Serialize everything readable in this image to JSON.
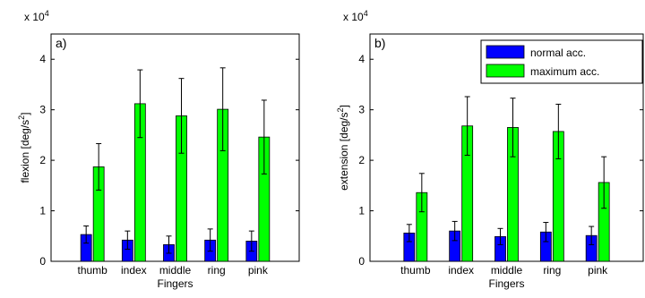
{
  "chart_data": [
    {
      "type": "bar",
      "panel_label": "a)",
      "multiplier_base": "x 10",
      "multiplier_exp": "4",
      "xlabel": "Fingers",
      "ylabel": "flexion [deg/s",
      "ylabel_exp": "2",
      "ylabel_end": "]",
      "ylim": [
        0,
        45000
      ],
      "yticks": [
        0,
        10000,
        20000,
        30000,
        40000
      ],
      "ytick_labels": [
        "0",
        "1",
        "2",
        "3",
        "4"
      ],
      "categories": [
        "thumb",
        "index",
        "middle",
        "ring",
        "pink"
      ],
      "series": [
        {
          "color": "#0000ff",
          "values": [
            5300,
            4200,
            3300,
            4200,
            4000
          ],
          "errors": [
            1700,
            1800,
            1700,
            2200,
            2000
          ]
        },
        {
          "color": "#00ff00",
          "values": [
            18700,
            31200,
            28800,
            30100,
            24600
          ],
          "errors": [
            4600,
            6700,
            7400,
            8200,
            7300
          ]
        }
      ],
      "legend": null
    },
    {
      "type": "bar",
      "panel_label": "b)",
      "multiplier_base": "x 10",
      "multiplier_exp": "4",
      "xlabel": "Fingers",
      "ylabel": "extension [deg/s",
      "ylabel_exp": "2",
      "ylabel_end": "]",
      "ylim": [
        0,
        45000
      ],
      "yticks": [
        0,
        10000,
        20000,
        30000,
        40000
      ],
      "ytick_labels": [
        "0",
        "1",
        "2",
        "3",
        "4"
      ],
      "categories": [
        "thumb",
        "index",
        "middle",
        "ring",
        "pink"
      ],
      "series": [
        {
          "name": "normal acc.",
          "color": "#0000ff",
          "values": [
            5600,
            6000,
            4900,
            5800,
            5100
          ],
          "errors": [
            1700,
            1900,
            1600,
            1900,
            1800
          ]
        },
        {
          "name": "maximum acc.",
          "color": "#00ff00",
          "values": [
            13600,
            26800,
            26500,
            25700,
            15600
          ],
          "errors": [
            3800,
            5800,
            5800,
            5400,
            5100
          ]
        }
      ],
      "legend": "top-right"
    }
  ]
}
